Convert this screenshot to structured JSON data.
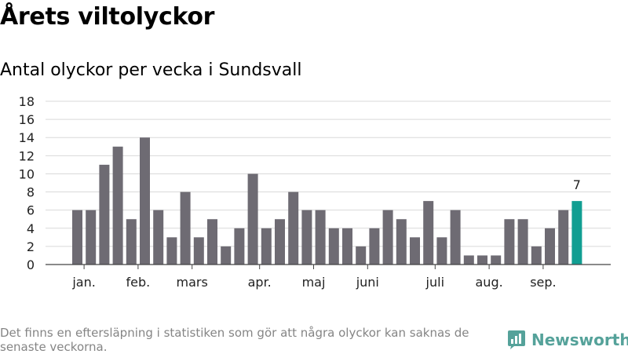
{
  "header": {
    "title": "Årets viltolyckor",
    "subtitle": "Antal olyckor per vecka i Sundsvall"
  },
  "footer": {
    "note": "Det finns en eftersläpning i statistiken som gör att några olyckor kan saknas de senaste veckorna.",
    "brand": "Newsworthy"
  },
  "colors": {
    "bar": "#6e6b73",
    "highlight": "#119e92",
    "grid": "#d9d9d9",
    "axis": "#444444",
    "brand": "#55a29a"
  },
  "icons": {
    "brand": "bar-chart-logo-icon"
  },
  "chart_data": {
    "type": "bar",
    "title": "Antal olyckor per vecka i Sundsvall",
    "xlabel": "",
    "ylabel": "",
    "ylim": [
      0,
      18
    ],
    "yticks": [
      0,
      2,
      4,
      6,
      8,
      10,
      12,
      14,
      16,
      18
    ],
    "grid": true,
    "values": [
      6,
      6,
      11,
      13,
      5,
      14,
      6,
      3,
      8,
      3,
      5,
      2,
      4,
      10,
      4,
      5,
      8,
      6,
      6,
      4,
      4,
      2,
      4,
      6,
      5,
      3,
      7,
      3,
      6,
      1,
      1,
      1,
      5,
      5,
      2,
      4,
      6,
      7
    ],
    "highlight_index": 37,
    "highlight_label": "7",
    "month_labels": [
      {
        "label": "jan.",
        "bar_index": 0.5
      },
      {
        "label": "feb.",
        "bar_index": 4.5
      },
      {
        "label": "mars",
        "bar_index": 8.5
      },
      {
        "label": "apr.",
        "bar_index": 13.5
      },
      {
        "label": "maj",
        "bar_index": 17.5
      },
      {
        "label": "juni",
        "bar_index": 21.5
      },
      {
        "label": "juli",
        "bar_index": 26.5
      },
      {
        "label": "aug.",
        "bar_index": 30.5
      },
      {
        "label": "sep.",
        "bar_index": 34.5
      }
    ]
  }
}
